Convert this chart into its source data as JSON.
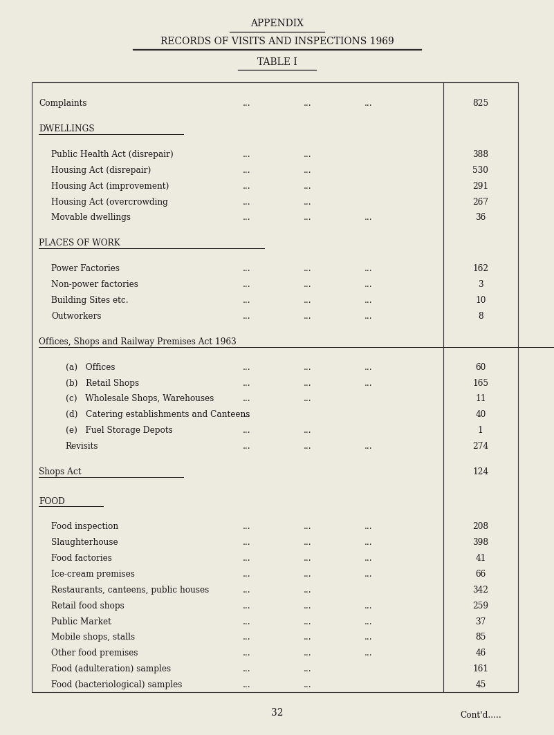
{
  "title1": "APPENDIX",
  "title2": "RECORDS OF VISITS AND INSPECTIONS 1969",
  "title3": "TABLE I",
  "bg_color": "#edeae0",
  "page_number": "32",
  "rows": [
    {
      "type": "entry",
      "indent": 0,
      "label": "Complaints",
      "d1": "...",
      "d2": "...",
      "d3": "...",
      "value": "825"
    },
    {
      "type": "gap"
    },
    {
      "type": "section",
      "label": "DWELLINGS"
    },
    {
      "type": "gap_small"
    },
    {
      "type": "entry",
      "indent": 1,
      "label": "Public Health Act (disrepair)",
      "d1": "...",
      "d2": "...",
      "d3": "",
      "value": "388"
    },
    {
      "type": "entry",
      "indent": 1,
      "label": "Housing Act (disrepair)",
      "d1": "...",
      "d2": "...",
      "d3": "",
      "value": "530"
    },
    {
      "type": "entry",
      "indent": 1,
      "label": "Housing Act (improvement)",
      "d1": "...",
      "d2": "...",
      "d3": "",
      "value": "291"
    },
    {
      "type": "entry",
      "indent": 1,
      "label": "Housing Act (overcrowding",
      "d1": "...",
      "d2": "...",
      "d3": "",
      "value": "267"
    },
    {
      "type": "entry",
      "indent": 1,
      "label": "Movable dwellings",
      "d1": "...",
      "d2": "...",
      "d3": "...",
      "value": "36"
    },
    {
      "type": "gap"
    },
    {
      "type": "section",
      "label": "PLACES OF WORK"
    },
    {
      "type": "gap_small"
    },
    {
      "type": "entry",
      "indent": 1,
      "label": "Power Factories",
      "d1": "...",
      "d2": "...",
      "d3": "...",
      "value": "162"
    },
    {
      "type": "entry",
      "indent": 1,
      "label": "Non-power factories",
      "d1": "...",
      "d2": "...",
      "d3": "...",
      "value": "3"
    },
    {
      "type": "entry",
      "indent": 1,
      "label": "Building Sites etc.",
      "d1": "...",
      "d2": "...",
      "d3": "...",
      "value": "10"
    },
    {
      "type": "entry",
      "indent": 1,
      "label": "Outworkers",
      "d1": "...",
      "d2": "...",
      "d3": "...",
      "value": "8"
    },
    {
      "type": "gap"
    },
    {
      "type": "subsect",
      "label": "Offices, Shops and Railway Premises Act 1963"
    },
    {
      "type": "gap_small"
    },
    {
      "type": "entry",
      "indent": 2,
      "label": "(a)   Offices",
      "d1": "...",
      "d2": "...",
      "d3": "...",
      "value": "60"
    },
    {
      "type": "entry",
      "indent": 2,
      "label": "(b)   Retail Shops",
      "d1": "...",
      "d2": "...",
      "d3": "...",
      "value": "165"
    },
    {
      "type": "entry",
      "indent": 2,
      "label": "(c)   Wholesale Shops, Warehouses",
      "d1": "...",
      "d2": "...",
      "d3": "",
      "value": "11"
    },
    {
      "type": "entry",
      "indent": 2,
      "label": "(d)   Catering establishments and Canteens",
      "d1": "...",
      "d2": "",
      "d3": "",
      "value": "40"
    },
    {
      "type": "entry",
      "indent": 2,
      "label": "(e)   Fuel Storage Depots",
      "d1": "...",
      "d2": "...",
      "d3": "",
      "value": "1"
    },
    {
      "type": "entry",
      "indent": 2,
      "label": "Revisits",
      "d1": "...",
      "d2": "...",
      "d3": "...",
      "value": "274"
    },
    {
      "type": "gap"
    },
    {
      "type": "subsect",
      "label": "Shops Act",
      "value": "124"
    },
    {
      "type": "gap"
    },
    {
      "type": "section",
      "label": "FOOD"
    },
    {
      "type": "gap_small"
    },
    {
      "type": "entry",
      "indent": 1,
      "label": "Food inspection",
      "d1": "...",
      "d2": "...",
      "d3": "...",
      "value": "208"
    },
    {
      "type": "entry",
      "indent": 1,
      "label": "Slaughterhouse",
      "d1": "...",
      "d2": "...",
      "d3": "...",
      "value": "398"
    },
    {
      "type": "entry",
      "indent": 1,
      "label": "Food factories",
      "d1": "...",
      "d2": "...",
      "d3": "...",
      "value": "41"
    },
    {
      "type": "entry",
      "indent": 1,
      "label": "Ice-cream premises",
      "d1": "...",
      "d2": "...",
      "d3": "...",
      "value": "66"
    },
    {
      "type": "entry",
      "indent": 1,
      "label": "Restaurants, canteens, public houses",
      "d1": "...",
      "d2": "...",
      "d3": "",
      "value": "342"
    },
    {
      "type": "entry",
      "indent": 1,
      "label": "Retail food shops",
      "d1": "...",
      "d2": "...",
      "d3": "...",
      "value": "259"
    },
    {
      "type": "entry",
      "indent": 1,
      "label": "Public Market",
      "d1": "...",
      "d2": "...",
      "d3": "...",
      "value": "37"
    },
    {
      "type": "entry",
      "indent": 1,
      "label": "Mobile shops, stalls",
      "d1": "...",
      "d2": "...",
      "d3": "...",
      "value": "85"
    },
    {
      "type": "entry",
      "indent": 1,
      "label": "Other food premises",
      "d1": "...",
      "d2": "...",
      "d3": "...",
      "value": "46"
    },
    {
      "type": "entry",
      "indent": 1,
      "label": "Food (adulteration) samples",
      "d1": "...",
      "d2": "...",
      "d3": "",
      "value": "161"
    },
    {
      "type": "entry",
      "indent": 1,
      "label": "Food (bacteriological) samples",
      "d1": "...",
      "d2": "...",
      "d3": "",
      "value": "45"
    },
    {
      "type": "gap"
    },
    {
      "type": "contd"
    }
  ],
  "contd_text": "Cont'd.....",
  "title1_underline": [
    0.415,
    0.585
  ],
  "title2_underline": [
    0.24,
    0.76
  ],
  "title3_underline": [
    0.43,
    0.57
  ]
}
